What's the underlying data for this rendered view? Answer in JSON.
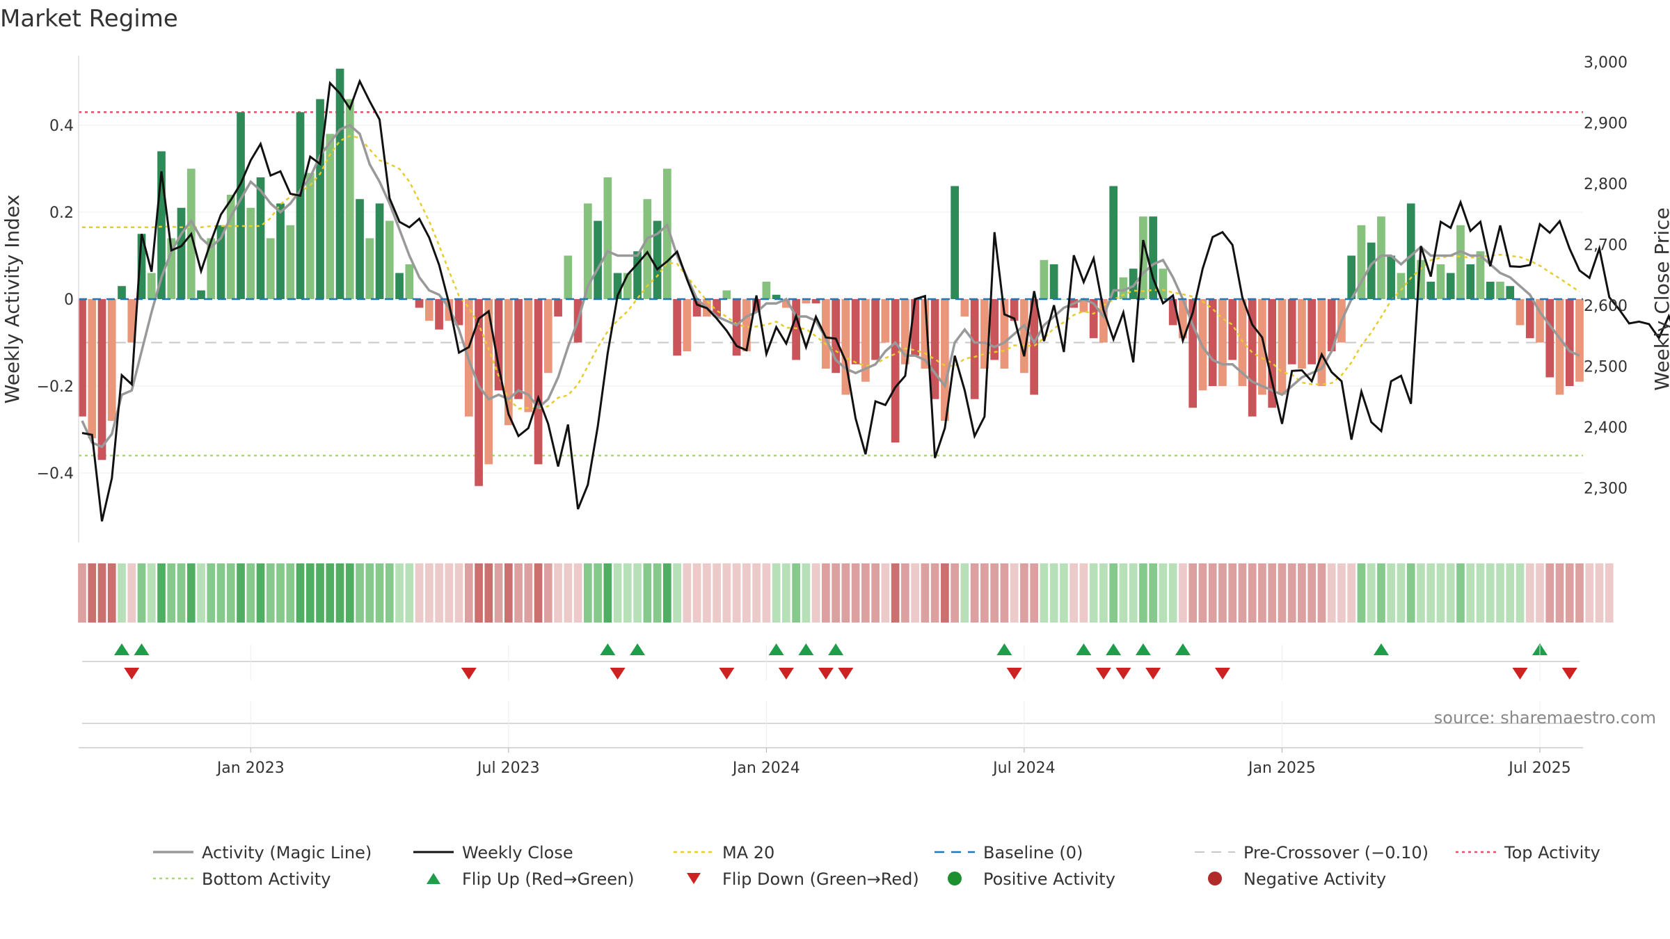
{
  "chart_data": {
    "type": "bar",
    "title": "Market Regime",
    "ylabel": "Weekly Activity Index",
    "y2label": "Weekly Close Price",
    "ylim": [
      -0.56,
      0.56
    ],
    "y2lim": [
      2210,
      3010
    ],
    "yticks": [
      -0.4,
      -0.2,
      0,
      0.2,
      0.4
    ],
    "y2ticks": [
      2300,
      2400,
      2500,
      2600,
      2700,
      2800,
      2900,
      3000
    ],
    "x_ticks": [
      "Jan 2023",
      "Jul 2023",
      "Jan 2024",
      "Jul 2024",
      "Jan 2025",
      "Jul 2025"
    ],
    "x_tick_weeks": [
      17,
      43,
      69,
      95,
      121,
      147
    ],
    "reference_lines": {
      "baseline": 0,
      "pre_crossover": -0.1,
      "top_activity": 0.43,
      "bottom_activity": -0.36
    },
    "activity": [
      -0.27,
      -0.32,
      -0.37,
      -0.28,
      0.03,
      -0.1,
      0.15,
      0.06,
      0.34,
      0.14,
      0.21,
      0.3,
      0.02,
      0.14,
      0.17,
      0.24,
      0.43,
      0.21,
      0.28,
      0.14,
      0.22,
      0.17,
      0.43,
      0.29,
      0.46,
      0.38,
      0.53,
      0.46,
      0.23,
      0.14,
      0.22,
      0.18,
      0.06,
      0.08,
      -0.02,
      -0.05,
      -0.07,
      -0.05,
      -0.06,
      -0.27,
      -0.43,
      -0.38,
      -0.21,
      -0.29,
      -0.23,
      -0.26,
      -0.38,
      -0.17,
      -0.04,
      0.1,
      -0.1,
      0.22,
      0.18,
      0.28,
      0.06,
      0.06,
      0.11,
      0.23,
      0.18,
      0.3,
      -0.13,
      -0.12,
      -0.04,
      -0.04,
      -0.04,
      0.02,
      -0.13,
      -0.12,
      -0.03,
      0.04,
      0.01,
      -0.02,
      -0.14,
      -0.01,
      -0.01,
      -0.16,
      -0.17,
      -0.22,
      -0.15,
      -0.19,
      -0.14,
      -0.1,
      -0.33,
      -0.15,
      -0.13,
      -0.16,
      -0.23,
      -0.28,
      0.26,
      -0.04,
      -0.23,
      -0.16,
      -0.14,
      -0.16,
      -0.05,
      -0.17,
      -0.22,
      0.09,
      0.08,
      0.0,
      -0.02,
      -0.03,
      -0.09,
      -0.1,
      0.26,
      0.05,
      0.07,
      0.19,
      0.19,
      0.07,
      -0.06,
      -0.09,
      -0.25,
      -0.21,
      -0.2,
      -0.2,
      -0.14,
      -0.2,
      -0.27,
      -0.22,
      -0.25,
      -0.22,
      -0.15,
      -0.16,
      -0.15,
      -0.2,
      -0.12,
      -0.1,
      0.1,
      0.17,
      0.13,
      0.19,
      0.1,
      0.06,
      0.22,
      0.09,
      0.04,
      0.08,
      0.06,
      0.17,
      0.08,
      0.11,
      0.04,
      0.04,
      0.03,
      -0.06,
      -0.09,
      -0.1,
      -0.18,
      -0.22,
      -0.2,
      -0.19
    ],
    "magic_line": [
      -0.28,
      -0.33,
      -0.34,
      -0.31,
      -0.22,
      -0.21,
      -0.12,
      -0.03,
      0.05,
      0.11,
      0.15,
      0.18,
      0.14,
      0.12,
      0.14,
      0.19,
      0.23,
      0.27,
      0.25,
      0.22,
      0.2,
      0.22,
      0.25,
      0.28,
      0.33,
      0.36,
      0.39,
      0.4,
      0.38,
      0.31,
      0.27,
      0.22,
      0.16,
      0.1,
      0.05,
      0.02,
      0.01,
      -0.02,
      -0.07,
      -0.14,
      -0.2,
      -0.23,
      -0.22,
      -0.23,
      -0.21,
      -0.22,
      -0.25,
      -0.23,
      -0.18,
      -0.11,
      -0.05,
      0.03,
      0.07,
      0.11,
      0.1,
      0.1,
      0.1,
      0.14,
      0.15,
      0.17,
      0.1,
      0.05,
      0.0,
      -0.02,
      -0.04,
      -0.05,
      -0.06,
      -0.04,
      -0.03,
      -0.01,
      -0.01,
      0.0,
      -0.04,
      -0.04,
      -0.05,
      -0.09,
      -0.14,
      -0.16,
      -0.17,
      -0.16,
      -0.15,
      -0.12,
      -0.1,
      -0.13,
      -0.13,
      -0.14,
      -0.17,
      -0.2,
      -0.1,
      -0.07,
      -0.1,
      -0.1,
      -0.11,
      -0.1,
      -0.08,
      -0.06,
      -0.1,
      -0.06,
      -0.04,
      -0.02,
      -0.01,
      0.0,
      -0.01,
      -0.04,
      0.02,
      0.02,
      0.03,
      0.06,
      0.08,
      0.09,
      0.05,
      0.0,
      -0.06,
      -0.11,
      -0.14,
      -0.15,
      -0.15,
      -0.17,
      -0.19,
      -0.2,
      -0.21,
      -0.22,
      -0.2,
      -0.18,
      -0.17,
      -0.16,
      -0.12,
      -0.05,
      0.0,
      0.04,
      0.08,
      0.1,
      0.1,
      0.08,
      0.1,
      0.12,
      0.1,
      0.1,
      0.1,
      0.11,
      0.1,
      0.1,
      0.08,
      0.06,
      0.05,
      0.03,
      0.01,
      -0.03,
      -0.06,
      -0.09,
      -0.12,
      -0.13
    ],
    "weekly_close": [
      2390,
      2387,
      2245,
      2316,
      2485,
      2470,
      2717,
      2655,
      2820,
      2690,
      2697,
      2717,
      2656,
      2705,
      2749,
      2773,
      2800,
      2838,
      2865,
      2813,
      2820,
      2783,
      2780,
      2844,
      2832,
      2965,
      2948,
      2923,
      2968,
      2935,
      2905,
      2776,
      2737,
      2728,
      2742,
      2711,
      2666,
      2603,
      2522,
      2531,
      2578,
      2590,
      2499,
      2421,
      2385,
      2398,
      2448,
      2405,
      2335,
      2404,
      2265,
      2305,
      2401,
      2521,
      2616,
      2650,
      2668,
      2687,
      2659,
      2672,
      2688,
      2642,
      2601,
      2595,
      2578,
      2558,
      2533,
      2526,
      2616,
      2520,
      2564,
      2537,
      2582,
      2531,
      2581,
      2547,
      2545,
      2508,
      2414,
      2355,
      2442,
      2436,
      2465,
      2484,
      2610,
      2615,
      2349,
      2398,
      2517,
      2460,
      2385,
      2417,
      2720,
      2585,
      2578,
      2516,
      2623,
      2541,
      2600,
      2523,
      2682,
      2638,
      2677,
      2592,
      2544,
      2588,
      2506,
      2707,
      2644,
      2603,
      2616,
      2542,
      2588,
      2660,
      2712,
      2720,
      2699,
      2613,
      2568,
      2547,
      2474,
      2405,
      2492,
      2493,
      2475,
      2519,
      2490,
      2475,
      2379,
      2458,
      2408,
      2393,
      2475,
      2484,
      2438,
      2697,
      2647,
      2737,
      2727,
      2769,
      2722,
      2737,
      2664,
      2731,
      2664,
      2663,
      2666,
      2733,
      2719,
      2738,
      2693,
      2657,
      2645,
      2693,
      2613,
      2593,
      2570,
      2573,
      2569,
      2546,
      2582,
      2542
    ],
    "ma_20": [
      2728,
      2728,
      2728,
      2728,
      2728,
      2728,
      2728,
      2728,
      2729,
      2729,
      2728,
      2728,
      2728,
      2730,
      2730,
      2730,
      2730,
      2730,
      2730,
      2743,
      2766,
      2778,
      2786,
      2797,
      2816,
      2848,
      2870,
      2878,
      2875,
      2856,
      2838,
      2832,
      2824,
      2803,
      2771,
      2738,
      2698,
      2656,
      2615,
      2596,
      2568,
      2528,
      2484,
      2446,
      2430,
      2431,
      2430,
      2434,
      2448,
      2452,
      2470,
      2500,
      2531,
      2557,
      2575,
      2590,
      2611,
      2632,
      2648,
      2670,
      2668,
      2647,
      2627,
      2607,
      2591,
      2581,
      2569,
      2564,
      2565,
      2568,
      2573,
      2563,
      2562,
      2561,
      2549,
      2536,
      2525,
      2514,
      2506,
      2500,
      2503,
      2513,
      2520,
      2529,
      2526,
      2521,
      2511,
      2501,
      2500,
      2512,
      2515,
      2520,
      2523,
      2525,
      2534,
      2534,
      2533,
      2546,
      2562,
      2572,
      2584,
      2590,
      2586,
      2600,
      2609,
      2617,
      2624,
      2623,
      2625,
      2625,
      2621,
      2618,
      2614,
      2606,
      2594,
      2578,
      2568,
      2541,
      2522,
      2513,
      2505,
      2490,
      2486,
      2473,
      2470,
      2470,
      2472,
      2485,
      2506,
      2534,
      2555,
      2581,
      2608,
      2625,
      2645,
      2660,
      2674,
      2678,
      2681,
      2680,
      2678,
      2680,
      2681,
      2683,
      2681,
      2679,
      2673,
      2665,
      2654,
      2644,
      2633,
      2622
    ],
    "regime_strip": [
      "r",
      "r",
      "r",
      "r",
      "g",
      "r",
      "g",
      "g",
      "g",
      "g",
      "g",
      "g",
      "g",
      "g",
      "g",
      "g",
      "g",
      "g",
      "g",
      "g",
      "g",
      "g",
      "g",
      "g",
      "g",
      "g",
      "g",
      "g",
      "g",
      "g",
      "g",
      "g",
      "g",
      "g",
      "r",
      "r",
      "r",
      "r",
      "r",
      "r",
      "r",
      "r",
      "r",
      "r",
      "r",
      "r",
      "r",
      "r",
      "r",
      "r",
      "r",
      "g",
      "g",
      "g",
      "g",
      "g",
      "g",
      "g",
      "g",
      "g",
      "g",
      "r",
      "r",
      "r",
      "r",
      "r",
      "r",
      "r",
      "r",
      "r",
      "g",
      "g",
      "g",
      "g",
      "r",
      "r",
      "r",
      "r",
      "r",
      "r",
      "r",
      "r",
      "r",
      "r",
      "r",
      "r",
      "r",
      "r",
      "r",
      "g",
      "r",
      "r",
      "r",
      "r",
      "r",
      "r",
      "r",
      "g",
      "g",
      "g",
      "r",
      "r",
      "g",
      "g",
      "g",
      "g",
      "g",
      "g",
      "g",
      "g",
      "g",
      "r",
      "r",
      "r",
      "r",
      "r",
      "r",
      "r",
      "r",
      "r",
      "r",
      "r",
      "r",
      "r",
      "r",
      "r",
      "r",
      "r",
      "r",
      "g",
      "g",
      "g",
      "g",
      "g",
      "g",
      "g",
      "g",
      "g",
      "g",
      "g",
      "g",
      "g",
      "g",
      "g",
      "g",
      "g",
      "r",
      "r",
      "r",
      "r",
      "r",
      "r",
      "r",
      "r",
      "r"
    ],
    "flip_up_weeks": [
      4,
      6,
      53,
      56,
      70,
      73,
      76,
      93,
      101,
      104,
      107,
      111,
      131,
      147
    ],
    "flip_down_weeks": [
      5,
      39,
      54,
      65,
      71,
      75,
      77,
      94,
      103,
      105,
      108,
      115,
      145,
      150
    ],
    "legend": [
      "Activity (Magic Line)",
      "Weekly Close",
      "MA 20",
      "Baseline (0)",
      "Pre-Crossover (−0.10)",
      "Top Activity",
      "Bottom Activity",
      "Flip Up (Red→Green)",
      "Flip Down (Green→Red)",
      "Positive Activity",
      "Negative Activity"
    ],
    "legend_position": "bottom",
    "source": "source: sharemaestro.com",
    "colors": {
      "pos_dark": "#2e8b57",
      "pos_light": "#86c17e",
      "neg_dark": "#c9545a",
      "neg_light": "#e9967a",
      "magic_line": "#999999",
      "close": "#111111",
      "ma": "#e6cc2e",
      "baseline": "#1f77b4",
      "pre_crossover": "#c8c8c8",
      "top": "#e0506a",
      "bottom": "#a6d96a",
      "flip_up": "#1e9e4a",
      "flip_down": "#cc2222",
      "pos_dot": "#1e8f2e",
      "neg_dot": "#b02a2a"
    }
  }
}
